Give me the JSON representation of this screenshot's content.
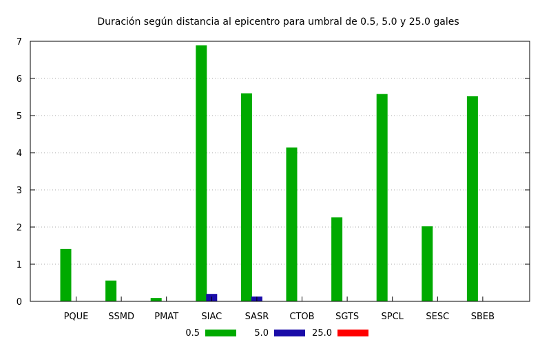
{
  "chart_data": {
    "type": "bar",
    "title": "Duración según distancia al epicentro para umbral de 0.5, 5.0 y 25.0 gales",
    "xlabel": "",
    "ylabel": "",
    "ylim": [
      0,
      7
    ],
    "yticks": [
      "0",
      "1",
      "2",
      "3",
      "4",
      "5",
      "6",
      "7"
    ],
    "grid": true,
    "legend_position": "bottom",
    "categories": [
      "PQUE",
      "SSMD",
      "PMAT",
      "SIAC",
      "SASR",
      "CTOB",
      "SGTS",
      "SPCL",
      "SESC",
      "SBEB"
    ],
    "series": [
      {
        "name": "0.5",
        "color": "#00aa00",
        "values": [
          1.41,
          0.56,
          0.09,
          6.89,
          5.6,
          4.14,
          2.26,
          5.58,
          2.02,
          5.52
        ]
      },
      {
        "name": "5.0",
        "color": "#1a0ca8",
        "values": [
          0,
          0,
          0,
          0.2,
          0.13,
          0,
          0,
          0,
          0,
          0
        ]
      },
      {
        "name": "25.0",
        "color": "#ff0000",
        "values": [
          0,
          0,
          0,
          0,
          0,
          0,
          0,
          0,
          0,
          0
        ]
      }
    ]
  }
}
